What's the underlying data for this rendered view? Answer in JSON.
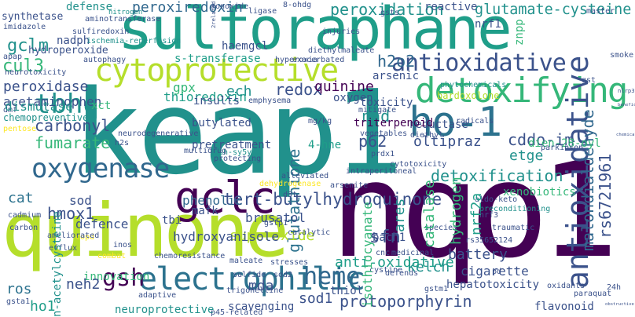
{
  "palette": {
    "dark_purple": "#440154",
    "indigo": "#3b528b",
    "blue": "#31688e",
    "steel": "#2c728e",
    "teal": "#21918c",
    "green_teal": "#1f9e89",
    "green": "#35b779",
    "lime": "#6ece58",
    "yellow_green": "#b5de2b",
    "yellow": "#fde725"
  },
  "words": [
    {
      "text": "keap1",
      "color": "teal"
    },
    {
      "text": "nqo1",
      "color": "dark_purple"
    },
    {
      "text": "sulforaphane",
      "color": "green_teal"
    },
    {
      "text": "quinone",
      "color": "yellow_green"
    },
    {
      "text": "cytoprotective",
      "color": "yellow_green"
    },
    {
      "text": "ho-1",
      "color": "steel"
    },
    {
      "text": "detoxifying",
      "color": "green"
    },
    {
      "text": "antioxidative",
      "color": "indigo"
    },
    {
      "text": "electrophilic",
      "color": "steel"
    },
    {
      "text": "oxidoreductase",
      "color": "indigo"
    },
    {
      "text": "gclc",
      "color": "dark_purple"
    },
    {
      "text": "oxygenase",
      "color": "blue"
    },
    {
      "text": "tbhq",
      "color": "teal"
    },
    {
      "text": "heme",
      "color": "blue"
    },
    {
      "text": "gsh",
      "color": "dark_purple"
    },
    {
      "text": "tert-butylhydroquinone",
      "color": "indigo"
    },
    {
      "text": "glutathione",
      "color": "steel"
    },
    {
      "text": "detoxification",
      "color": "teal"
    },
    {
      "text": "malondialdehyde",
      "color": "blue"
    },
    {
      "text": "rs6721961",
      "color": "indigo"
    },
    {
      "text": "cddo-im",
      "color": "indigo"
    },
    {
      "text": "protoporphyrin",
      "color": "indigo"
    },
    {
      "text": "peroxidation",
      "color": "teal"
    },
    {
      "text": "glutamate-cysteine",
      "color": "teal"
    },
    {
      "text": "peroxiredoxin",
      "color": "blue"
    },
    {
      "text": "cul3",
      "color": "green"
    },
    {
      "text": "gclm",
      "color": "teal"
    },
    {
      "text": "peroxidase",
      "color": "indigo"
    },
    {
      "text": "dismutase",
      "color": "teal"
    },
    {
      "text": "acetaminophen",
      "color": "indigo"
    },
    {
      "text": "carbonyl",
      "color": "indigo"
    },
    {
      "text": "fumarate",
      "color": "green"
    },
    {
      "text": "hydroperoxide",
      "color": "indigo"
    },
    {
      "text": "nadph",
      "color": "indigo"
    },
    {
      "text": "defense",
      "color": "teal"
    },
    {
      "text": "synthetase",
      "color": "indigo"
    },
    {
      "text": "s-transferase",
      "color": "green_teal"
    },
    {
      "text": "thioredoxin",
      "color": "green_teal"
    },
    {
      "text": "redox",
      "color": "indigo"
    },
    {
      "text": "ech",
      "color": "teal"
    },
    {
      "text": "h2o2",
      "color": "blue"
    },
    {
      "text": "quinine",
      "color": "dark_purple"
    },
    {
      "text": "nad",
      "color": "teal"
    },
    {
      "text": "triterpenoid",
      "color": "dark_purple"
    },
    {
      "text": "reductase",
      "color": "indigo"
    },
    {
      "text": "p62",
      "color": "indigo"
    },
    {
      "text": "etge",
      "color": "teal"
    },
    {
      "text": "oltipraz",
      "color": "indigo"
    },
    {
      "text": "dien-28-oyl",
      "color": "green"
    },
    {
      "text": "4-hne",
      "color": "green_teal"
    },
    {
      "text": "xenobiotics",
      "color": "green"
    },
    {
      "text": "hydrogen",
      "color": "green"
    },
    {
      "text": "nrf2a",
      "color": "green_teal"
    },
    {
      "text": "sfn",
      "color": "indigo"
    },
    {
      "text": "superoxide",
      "color": "yellow_green"
    },
    {
      "text": "brusatol",
      "color": "indigo"
    },
    {
      "text": "phenolic",
      "color": "blue"
    },
    {
      "text": "hmox1",
      "color": "indigo"
    },
    {
      "text": "sod",
      "color": "indigo"
    },
    {
      "text": "cat",
      "color": "steel"
    },
    {
      "text": "mafk",
      "color": "indigo"
    },
    {
      "text": "hydroxyanisole",
      "color": "indigo"
    },
    {
      "text": "pretreatment",
      "color": "indigo"
    },
    {
      "text": "butylated",
      "color": "indigo"
    },
    {
      "text": "defence",
      "color": "indigo"
    },
    {
      "text": "gpx",
      "color": "green"
    },
    {
      "text": "insults",
      "color": "indigo"
    },
    {
      "text": "xct",
      "color": "green"
    },
    {
      "text": "chemopreventive",
      "color": "teal"
    },
    {
      "text": "kelch",
      "color": "teal"
    },
    {
      "text": "ares",
      "color": "teal"
    },
    {
      "text": "catalase",
      "color": "green"
    },
    {
      "text": "battery",
      "color": "indigo"
    },
    {
      "text": "cigarette",
      "color": "indigo"
    },
    {
      "text": "hepatotoxicity",
      "color": "indigo"
    },
    {
      "text": "anti-oxidative",
      "color": "green_teal"
    },
    {
      "text": "isothiocyanate",
      "color": "green"
    },
    {
      "text": "bach1",
      "color": "indigo"
    },
    {
      "text": "thiol",
      "color": "indigo"
    },
    {
      "text": "sod1",
      "color": "indigo"
    },
    {
      "text": "mda",
      "color": "indigo"
    },
    {
      "text": "scavenging",
      "color": "indigo"
    },
    {
      "text": "neuroprotective",
      "color": "teal"
    },
    {
      "text": "innovation",
      "color": "green"
    },
    {
      "text": "neh2",
      "color": "indigo"
    },
    {
      "text": "ho1",
      "color": "green_teal"
    },
    {
      "text": "ros",
      "color": "steel"
    },
    {
      "text": "n-acetylcysteine",
      "color": "teal"
    },
    {
      "text": "flavonoid",
      "color": "indigo"
    },
    {
      "text": "toxicity",
      "color": "indigo"
    },
    {
      "text": "arsenic",
      "color": "indigo"
    },
    {
      "text": "oxygen",
      "color": "indigo"
    },
    {
      "text": "bardoxolone",
      "color": "yellow_green"
    },
    {
      "text": "haem",
      "color": "indigo"
    },
    {
      "text": "gcl",
      "color": "indigo"
    },
    {
      "text": "reactive",
      "color": "indigo"
    },
    {
      "text": "nrf1",
      "color": "indigo"
    },
    {
      "text": "2related",
      "color": "indigo"
    },
    {
      "text": "znpp",
      "color": "green"
    },
    {
      "text": "sod2",
      "color": "indigo"
    },
    {
      "text": "iron",
      "color": "indigo"
    },
    {
      "text": "8-ohdg",
      "color": "indigo"
    },
    {
      "text": "monoxide",
      "color": "indigo"
    },
    {
      "text": "aminotransferase",
      "color": "indigo"
    },
    {
      "text": "nitrogen",
      "color": "teal"
    },
    {
      "text": "imidazole",
      "color": "indigo"
    },
    {
      "text": "sulfiredoxin",
      "color": "indigo"
    },
    {
      "text": "ischemia-reperfusion",
      "color": "teal"
    },
    {
      "text": "neurotoxicity",
      "color": "indigo"
    },
    {
      "text": "autophagy",
      "color": "indigo"
    },
    {
      "text": "injuries",
      "color": "indigo"
    },
    {
      "text": "diethylmaleate",
      "color": "indigo"
    },
    {
      "text": "exacerbated",
      "color": "indigo"
    },
    {
      "text": "hyperoxia",
      "color": "indigo"
    },
    {
      "text": "phytochemicals",
      "color": "teal"
    },
    {
      "text": "emphysema",
      "color": "indigo"
    },
    {
      "text": "gst",
      "color": "indigo"
    },
    {
      "text": "vegetables",
      "color": "indigo"
    },
    {
      "text": "neurodegenerative",
      "color": "indigo"
    },
    {
      "text": "pentose",
      "color": "yellow"
    },
    {
      "text": "h2s",
      "color": "indigo"
    },
    {
      "text": "sh-sy5y",
      "color": "teal"
    },
    {
      "text": "protecting",
      "color": "indigo"
    },
    {
      "text": "multidrug",
      "color": "indigo"
    },
    {
      "text": "mitigate",
      "color": "indigo"
    },
    {
      "text": "diethyl",
      "color": "indigo"
    },
    {
      "text": "radicals",
      "color": "indigo"
    },
    {
      "text": "broccoli",
      "color": "indigo"
    },
    {
      "text": "prdx1",
      "color": "indigo"
    },
    {
      "text": "parkinson",
      "color": "indigo"
    },
    {
      "text": "alleviated",
      "color": "indigo"
    },
    {
      "text": "cytotoxicity",
      "color": "indigo"
    },
    {
      "text": "intraperitoneal",
      "color": "indigo"
    },
    {
      "text": "dehydrogenase",
      "color": "yellow"
    },
    {
      "text": "arsenite",
      "color": "indigo"
    },
    {
      "text": "preconditioning",
      "color": "teal"
    },
    {
      "text": "aldo-keto",
      "color": "indigo"
    },
    {
      "text": "cadmium",
      "color": "indigo"
    },
    {
      "text": "ameliorated",
      "color": "indigo"
    },
    {
      "text": "carbon",
      "color": "indigo"
    },
    {
      "text": "gstp1",
      "color": "indigo"
    },
    {
      "text": "catalytic",
      "color": "indigo"
    },
    {
      "text": "cnc",
      "color": "indigo"
    },
    {
      "text": "nrf3",
      "color": "indigo"
    },
    {
      "text": "traumatic",
      "color": "indigo"
    },
    {
      "text": "species",
      "color": "indigo"
    },
    {
      "text": "medicinal",
      "color": "indigo"
    },
    {
      "text": "rs35652124",
      "color": "indigo"
    },
    {
      "text": "defends",
      "color": "indigo"
    },
    {
      "text": "inos",
      "color": "indigo"
    },
    {
      "text": "efflux",
      "color": "indigo"
    },
    {
      "text": "combat",
      "color": "yellow"
    },
    {
      "text": "maleate",
      "color": "indigo"
    },
    {
      "text": "chemoresistance",
      "color": "indigo"
    },
    {
      "text": "stresses",
      "color": "indigo"
    },
    {
      "text": "sulfide",
      "color": "indigo"
    },
    {
      "text": "adaptive",
      "color": "indigo"
    },
    {
      "text": "gsta1",
      "color": "indigo"
    },
    {
      "text": "p45-related",
      "color": "indigo"
    },
    {
      "text": "trigonelline",
      "color": "indigo"
    },
    {
      "text": "gstm1",
      "color": "indigo"
    },
    {
      "text": "cystine",
      "color": "indigo"
    },
    {
      "text": "paraquat",
      "color": "indigo"
    },
    {
      "text": "obstructive",
      "color": "indigo"
    },
    {
      "text": "master",
      "color": "indigo"
    },
    {
      "text": "ligase",
      "color": "indigo"
    },
    {
      "text": "gsts",
      "color": "indigo"
    },
    {
      "text": "smoke",
      "color": "indigo"
    },
    {
      "text": "oxidants",
      "color": "indigo"
    },
    {
      "text": "nlrp3",
      "color": "indigo"
    },
    {
      "text": "chemicals",
      "color": "indigo"
    },
    {
      "text": "beneficial",
      "color": "indigo"
    },
    {
      "text": "apap",
      "color": "indigo"
    },
    {
      "text": "dmf",
      "color": "indigo"
    },
    {
      "text": "copd",
      "color": "yellow"
    },
    {
      "text": "tbi",
      "color": "indigo"
    },
    {
      "text": "mg/kg",
      "color": "indigo"
    },
    {
      "text": "pd",
      "color": "indigo"
    },
    {
      "text": "d3t",
      "color": "indigo"
    },
    {
      "text": "24h",
      "color": "indigo"
    }
  ]
}
